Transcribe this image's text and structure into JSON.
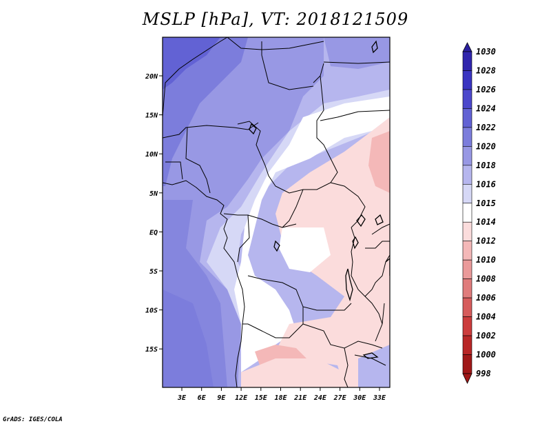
{
  "title": "MSLP [hPa], VT: 2018121509",
  "credit": "GrADS: IGES/COLA",
  "map": {
    "lon_labels": [
      "3E",
      "6E",
      "9E",
      "12E",
      "15E",
      "18E",
      "21E",
      "24E",
      "27E",
      "30E",
      "33E"
    ],
    "lat_labels": [
      "20N",
      "15N",
      "10N",
      "5N",
      "EQ",
      "5S",
      "10S",
      "15S"
    ]
  },
  "colorbar": {
    "labels": [
      "1030",
      "1028",
      "1026",
      "1024",
      "1022",
      "1020",
      "1018",
      "1016",
      "1015",
      "1014",
      "1012",
      "1010",
      "1008",
      "1006",
      "1004",
      "1002",
      "1000",
      "998"
    ],
    "colors": [
      "#2a1f9e",
      "#3025ad",
      "#3a34c1",
      "#4c48cc",
      "#6262d4",
      "#7c7ddc",
      "#9898e4",
      "#b6b6ee",
      "#d6d8f6",
      "#ffffff",
      "#fbdcdc",
      "#f4b8b8",
      "#ea9a9a",
      "#e07c7c",
      "#d65c5c",
      "#cc3c3c",
      "#b82626",
      "#a01818"
    ]
  }
}
